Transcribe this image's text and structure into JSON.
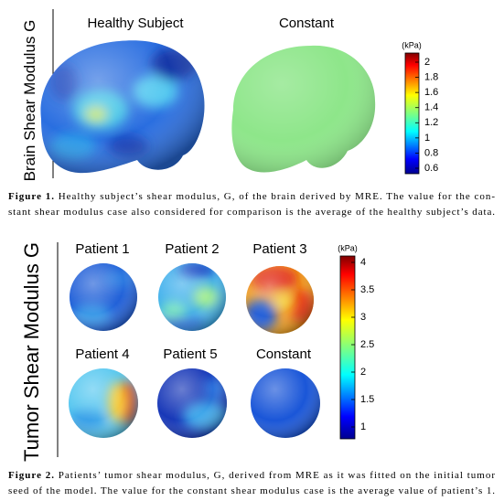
{
  "figure1": {
    "ylabel": "Brain Shear Modulus G",
    "panels": [
      "Healthy Subject",
      "Constant"
    ],
    "colorbar": {
      "unit": "(kPa)",
      "ticks": [
        2,
        1.8,
        1.6,
        1.4,
        1.2,
        1,
        0.8,
        0.6
      ]
    },
    "caption": {
      "label": "Figure 1.",
      "lines": [
        "Healthy subject’s shear modulus, G, of the brain derived by MRE. The value for the con-",
        "stant shear modulus case also considered for comparison is the average of the healthy subject’s data."
      ]
    }
  },
  "figure2": {
    "ylabel": "Tumor Shear Modulus G",
    "panels": [
      "Patient 1",
      "Patient 2",
      "Patient 3",
      "Patient 4",
      "Patient 5",
      "Constant"
    ],
    "colorbar": {
      "unit": "(kPa)",
      "ticks": [
        4,
        3.5,
        3,
        2.5,
        2,
        1.5,
        1
      ]
    },
    "caption": {
      "label": "Figure 2.",
      "lines": [
        "Patients’ tumor shear modulus, G, derived from MRE as it was fitted on the initial tumor",
        "seed of the model. The value for the constant shear modulus case is the average value of patient’s 1."
      ]
    }
  }
}
